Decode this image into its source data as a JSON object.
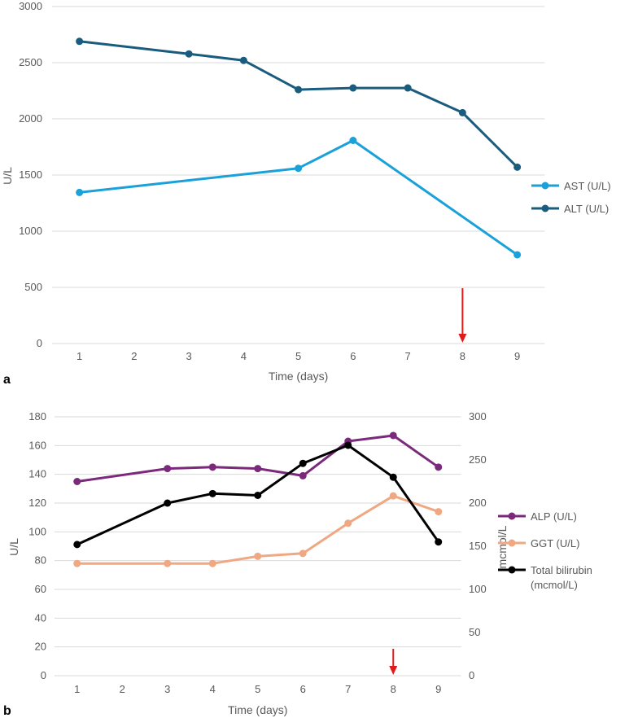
{
  "chart_data": [
    {
      "type": "line",
      "panel": "a",
      "xlabel": "Time (days)",
      "ylabel": "U/L",
      "categories": [
        "1",
        "2",
        "3",
        "4",
        "5",
        "6",
        "7",
        "8",
        "9"
      ],
      "ylim": [
        0,
        3000
      ],
      "yticks": [
        0,
        500,
        1000,
        1500,
        2000,
        2500,
        3000
      ],
      "series": [
        {
          "name": "AST (U/L)",
          "color": "#1ba1d9",
          "points": [
            [
              1,
              1345
            ],
            [
              5,
              1560
            ],
            [
              6,
              1808
            ],
            [
              9,
              790
            ]
          ]
        },
        {
          "name": "ALT (U/L)",
          "color": "#1a5c7d",
          "points": [
            [
              1,
              2690
            ],
            [
              3,
              2578
            ],
            [
              4,
              2520
            ],
            [
              5,
              2260
            ],
            [
              6,
              2275
            ],
            [
              7,
              2275
            ],
            [
              8,
              2055
            ],
            [
              9,
              1570
            ]
          ]
        }
      ],
      "arrow_day": 8,
      "arrow_color": "#e41a1a"
    },
    {
      "type": "line",
      "panel": "b",
      "xlabel": "Time (days)",
      "ylabel": "U/L",
      "ylabel_right": "mcmol/L",
      "categories": [
        "1",
        "2",
        "3",
        "4",
        "5",
        "6",
        "7",
        "8",
        "9"
      ],
      "ylim": [
        0,
        180
      ],
      "yticks": [
        0,
        20,
        40,
        60,
        80,
        100,
        120,
        140,
        160,
        180
      ],
      "ylim_right": [
        0,
        300
      ],
      "yticks_right": [
        0,
        50,
        100,
        150,
        200,
        250,
        300
      ],
      "series": [
        {
          "name": "ALP (U/L)",
          "color": "#7b2a7b",
          "axis": "left",
          "points": [
            [
              1,
              135
            ],
            [
              3,
              144
            ],
            [
              4,
              145
            ],
            [
              5,
              144
            ],
            [
              6,
              139
            ],
            [
              7,
              163
            ],
            [
              8,
              167
            ],
            [
              9,
              145
            ]
          ]
        },
        {
          "name": "GGT (U/L)",
          "color": "#f0a883",
          "axis": "left",
          "points": [
            [
              1,
              78
            ],
            [
              3,
              78
            ],
            [
              4,
              78
            ],
            [
              5,
              83
            ],
            [
              6,
              85
            ],
            [
              7,
              106
            ],
            [
              8,
              125
            ],
            [
              9,
              114
            ]
          ]
        },
        {
          "name": "Total bilirubin (mcmol/L)",
          "legend_lines": [
            "Total bilirubin",
            "(mcmol/L)"
          ],
          "color": "#000000",
          "axis": "right",
          "points": [
            [
              1,
              152
            ],
            [
              3,
              200
            ],
            [
              4,
              211
            ],
            [
              5,
              209
            ],
            [
              6,
              246
            ],
            [
              7,
              267
            ],
            [
              8,
              230
            ],
            [
              9,
              155
            ]
          ]
        }
      ],
      "arrow_day": 8,
      "arrow_color": "#e41a1a"
    }
  ]
}
